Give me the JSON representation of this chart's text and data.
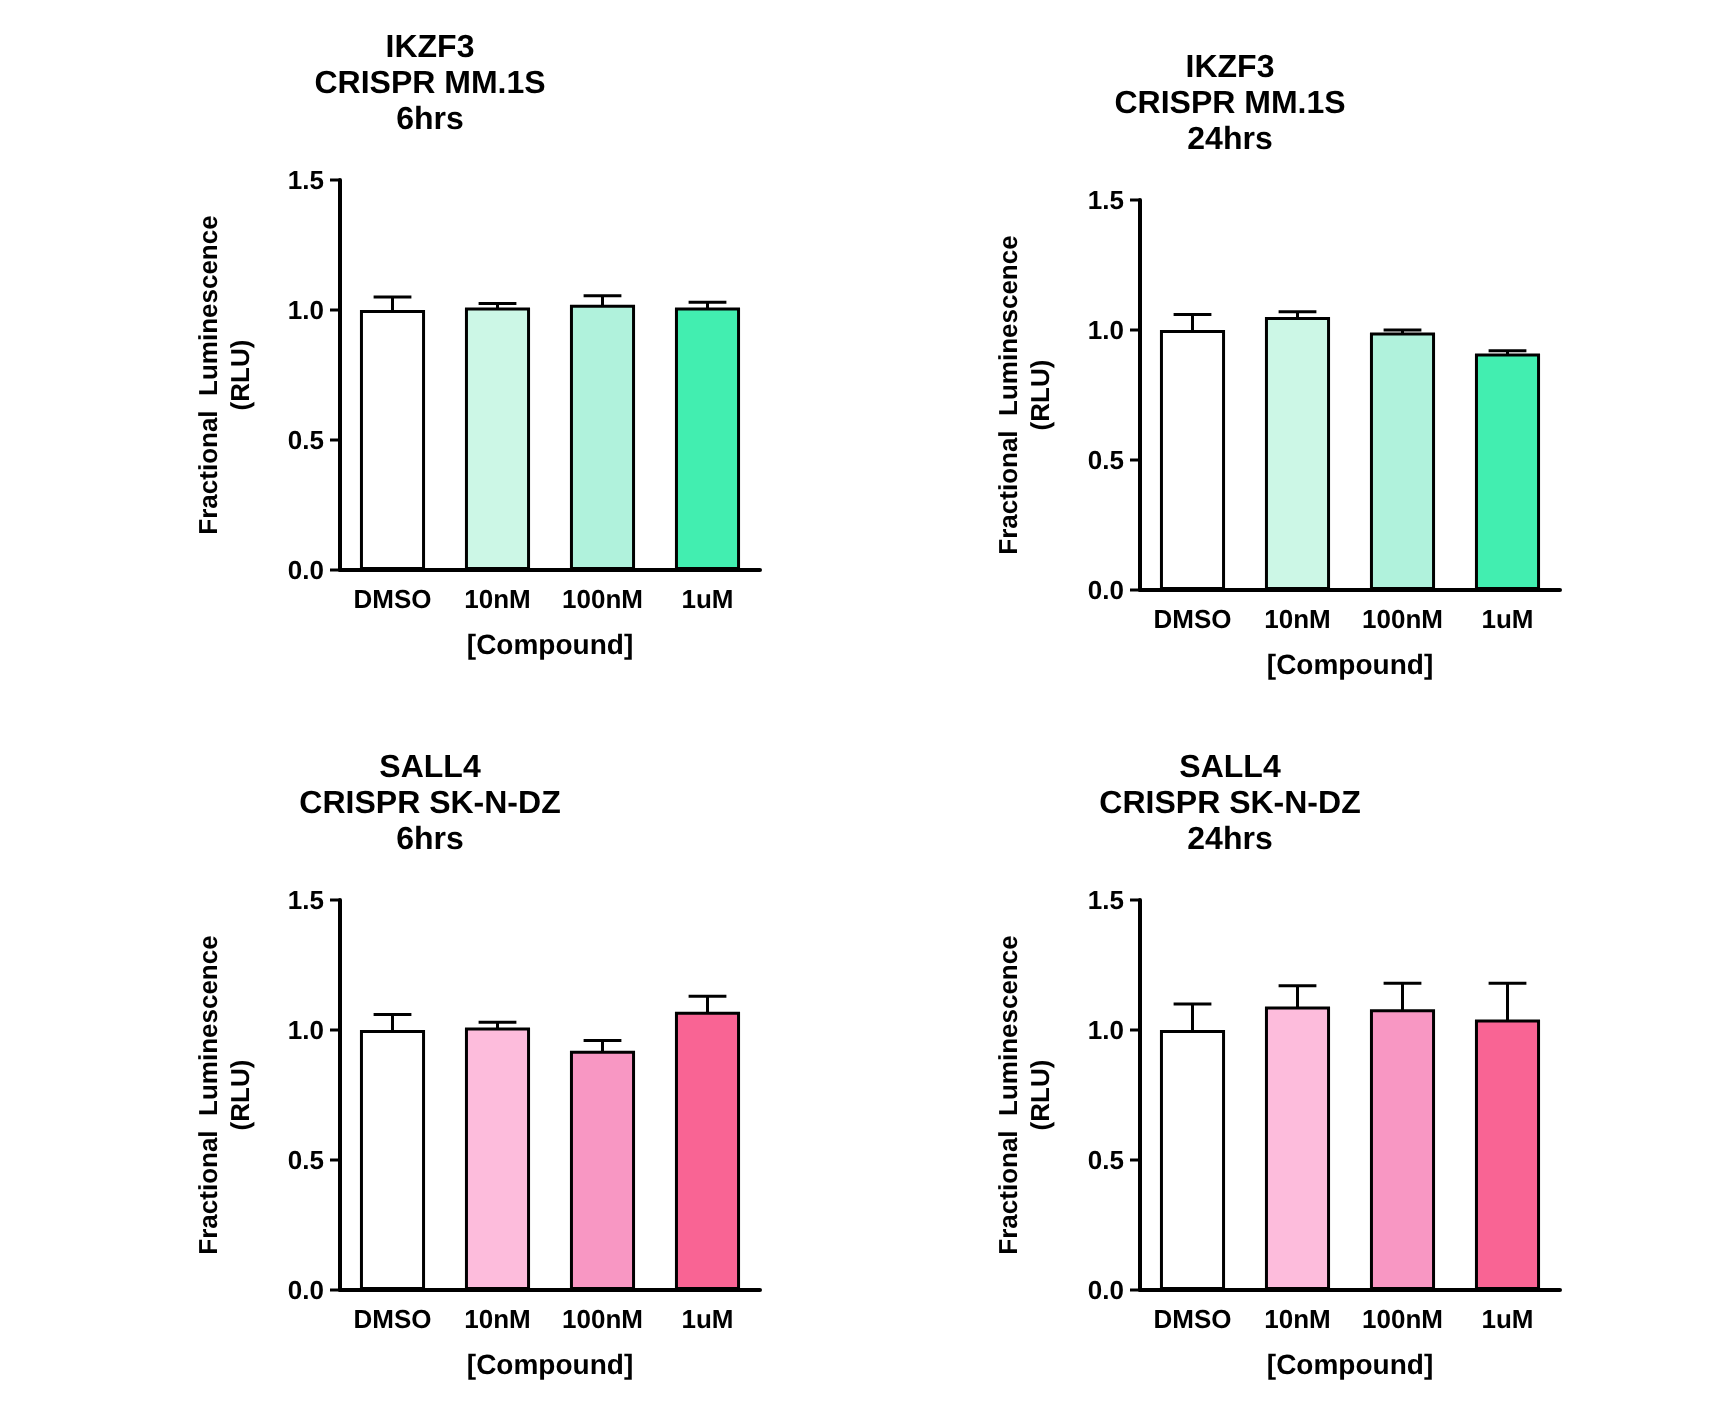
{
  "chart_data": [
    {
      "type": "bar",
      "title": "IKZF3\nCRISPR MM.1S\n6hrs",
      "xlabel": "[Compound]",
      "ylabel": "Fractional  Luminescence\n(RLU)",
      "categories": [
        "DMSO",
        "10nM",
        "100nM",
        "1uM"
      ],
      "values": [
        1.0,
        1.01,
        1.02,
        1.01
      ],
      "errors": [
        0.05,
        0.015,
        0.035,
        0.02
      ],
      "colors": [
        "#ffffff",
        "#ccf7e6",
        "#b0f2dc",
        "#42eeb0"
      ],
      "ylim": [
        0,
        1.5
      ],
      "yticks": [
        {
          "value": 0,
          "label": "0.0"
        },
        {
          "value": 0.5,
          "label": "0.5"
        },
        {
          "value": 1,
          "label": "1.0"
        },
        {
          "value": 1.5,
          "label": "1.5"
        }
      ],
      "grid": false
    },
    {
      "type": "bar",
      "title": "IKZF3\nCRISPR MM.1S\n24hrs",
      "xlabel": "[Compound]",
      "ylabel": "Fractional  Luminescence\n(RLU)",
      "categories": [
        "DMSO",
        "10nM",
        "100nM",
        "1uM"
      ],
      "values": [
        1.0,
        1.05,
        0.99,
        0.91
      ],
      "errors": [
        0.06,
        0.02,
        0.01,
        0.01
      ],
      "colors": [
        "#ffffff",
        "#ccf7e6",
        "#b0f2dc",
        "#42eeb0"
      ],
      "ylim": [
        0,
        1.5
      ],
      "yticks": [
        {
          "value": 0,
          "label": "0.0"
        },
        {
          "value": 0.5,
          "label": "0.5"
        },
        {
          "value": 1,
          "label": "1.0"
        },
        {
          "value": 1.5,
          "label": "1.5"
        }
      ],
      "grid": false
    },
    {
      "type": "bar",
      "title": "SALL4\nCRISPR SK-N-DZ\n6hrs",
      "xlabel": "[Compound]",
      "ylabel": "Fractional  Luminescence\n(RLU)",
      "categories": [
        "DMSO",
        "10nM",
        "100nM",
        "1uM"
      ],
      "values": [
        1.0,
        1.01,
        0.92,
        1.07
      ],
      "errors": [
        0.06,
        0.02,
        0.04,
        0.06
      ],
      "colors": [
        "#ffffff",
        "#fdbcdc",
        "#f897c3",
        "#f96494"
      ],
      "ylim": [
        0,
        1.5
      ],
      "yticks": [
        {
          "value": 0,
          "label": "0.0"
        },
        {
          "value": 0.5,
          "label": "0.5"
        },
        {
          "value": 1,
          "label": "1.0"
        },
        {
          "value": 1.5,
          "label": "1.5"
        }
      ],
      "grid": false
    },
    {
      "type": "bar",
      "title": "SALL4\nCRISPR SK-N-DZ\n24hrs",
      "xlabel": "[Compound]",
      "ylabel": "Fractional  Luminescence\n(RLU)",
      "categories": [
        "DMSO",
        "10nM",
        "100nM",
        "1uM"
      ],
      "values": [
        1.0,
        1.09,
        1.08,
        1.04
      ],
      "errors": [
        0.1,
        0.08,
        0.1,
        0.14
      ],
      "colors": [
        "#ffffff",
        "#fdbcdc",
        "#f897c3",
        "#f96494"
      ],
      "ylim": [
        0,
        1.5
      ],
      "yticks": [
        {
          "value": 0,
          "label": "0.0"
        },
        {
          "value": 0.5,
          "label": "0.5"
        },
        {
          "value": 1,
          "label": "1.0"
        },
        {
          "value": 1.5,
          "label": "1.5"
        }
      ],
      "grid": false
    }
  ]
}
